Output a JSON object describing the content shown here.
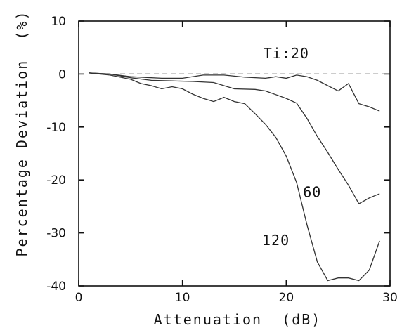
{
  "chart_data": {
    "type": "line",
    "xlabel": "Attenuation  (dB)",
    "ylabel": "Percentage Deviation  (%)",
    "xlim": [
      0,
      30
    ],
    "ylim": [
      -40,
      10
    ],
    "x_ticks": [
      0,
      10,
      20,
      30
    ],
    "y_ticks": [
      10,
      0,
      -10,
      -20,
      -30,
      -40
    ],
    "grid": false,
    "reference_line": {
      "y": 0,
      "style": "dashed"
    },
    "series": [
      {
        "label": "Ti:20",
        "x": [
          1,
          3,
          5,
          8,
          10,
          12,
          14,
          16,
          18,
          19,
          20,
          21,
          22,
          23,
          24,
          25,
          26,
          27,
          28,
          29
        ],
        "y": [
          0.2,
          0,
          -0.5,
          -0.8,
          -0.8,
          -0.2,
          -0.2,
          -0.6,
          -0.8,
          -0.5,
          -0.8,
          -0.2,
          -0.5,
          -1.2,
          -2.2,
          -3.2,
          -1.8,
          -5.6,
          -6.2,
          -7.0
        ]
      },
      {
        "label": "60",
        "x": [
          1,
          3,
          5,
          7,
          9,
          11,
          13,
          15,
          17,
          18,
          19,
          20,
          21,
          22,
          23,
          24,
          25,
          26,
          27,
          28,
          29
        ],
        "y": [
          0.2,
          0,
          -0.7,
          -1.2,
          -1.3,
          -1.4,
          -1.6,
          -2.8,
          -2.9,
          -3.2,
          -3.9,
          -4.6,
          -5.5,
          -8.4,
          -11.8,
          -14.8,
          -18.0,
          -21.0,
          -24.5,
          -23.4,
          -22.6
        ]
      },
      {
        "label": "120",
        "x": [
          1,
          3,
          5,
          6,
          7,
          8,
          9,
          10,
          11,
          12,
          13,
          14,
          15,
          16,
          17,
          18,
          19,
          20,
          21,
          22,
          23,
          24,
          25,
          26,
          27,
          28,
          29
        ],
        "y": [
          0.2,
          -0.2,
          -1.0,
          -1.8,
          -2.2,
          -2.8,
          -2.4,
          -2.8,
          -3.8,
          -4.6,
          -5.2,
          -4.4,
          -5.2,
          -5.6,
          -7.5,
          -9.5,
          -12.0,
          -15.5,
          -20.5,
          -28.5,
          -35.5,
          -39.0,
          -38.5,
          -38.5,
          -39.0,
          -37.0,
          -31.5
        ]
      }
    ]
  }
}
